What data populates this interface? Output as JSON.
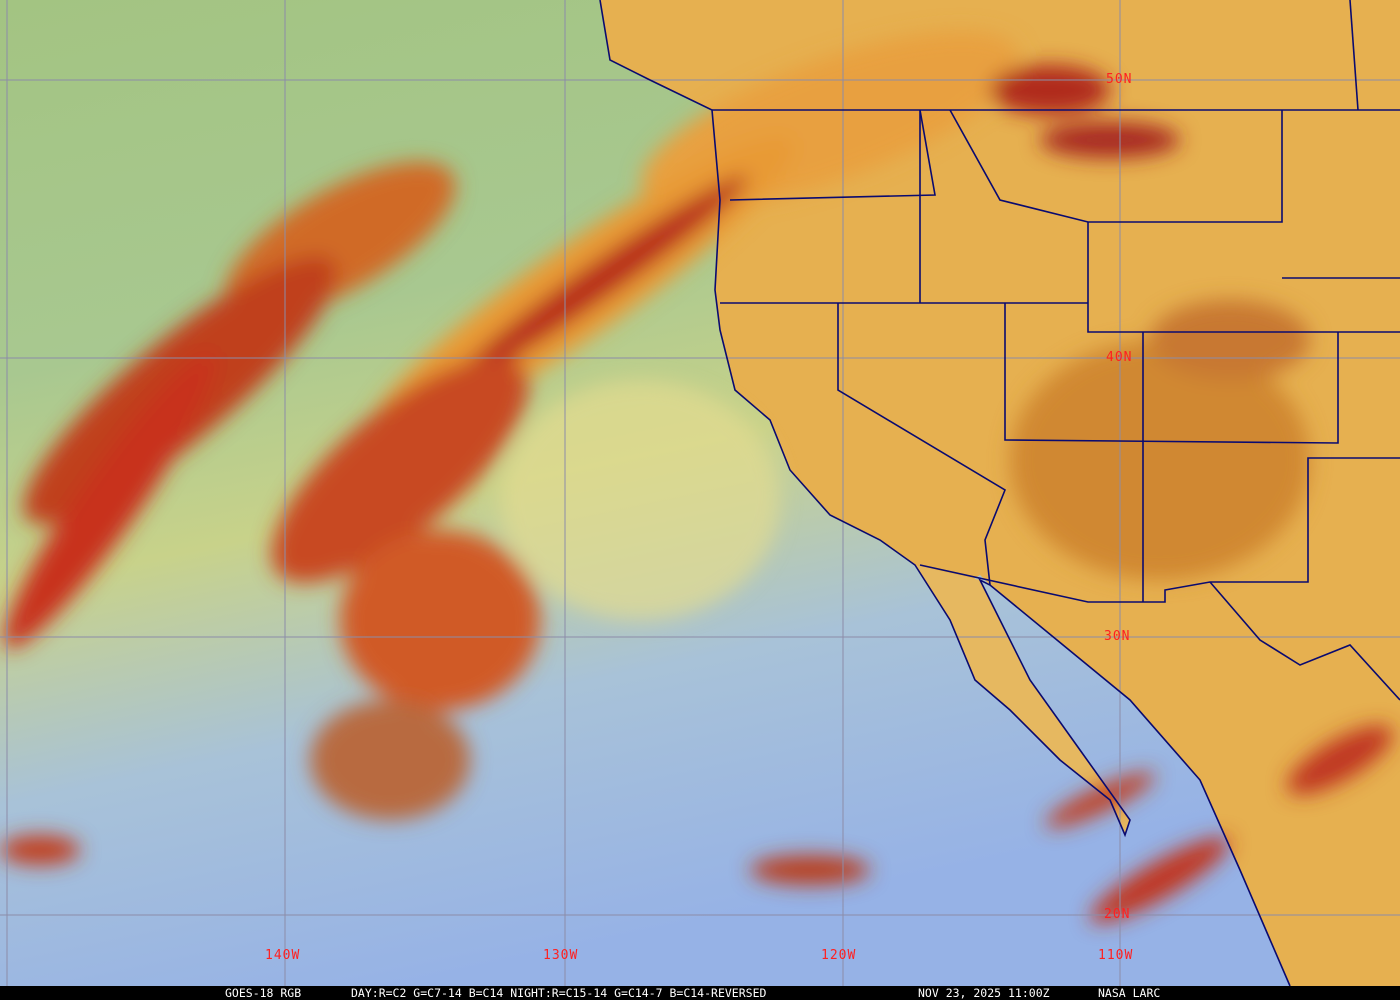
{
  "map": {
    "latitude_labels": [
      "50N",
      "40N",
      "30N",
      "20N"
    ],
    "longitude_labels": [
      "140W",
      "130W",
      "120W",
      "110W"
    ],
    "colors": {
      "land": "#e8b24e",
      "ocean_north": "#a3c482",
      "ocean_south": "#9cb8e6",
      "cloud_high": "#c8341e",
      "cloud_mid": "#f0a030",
      "grid": "#8c8ca8",
      "borders": "#0a0a70",
      "labels": "#ff2020"
    }
  },
  "footer": {
    "product": "GOES-18 RGB",
    "recipe": "DAY:R=C2 G=C7-14 B=C14 NIGHT:R=C15-14 G=C14-7 B=C14-REVERSED",
    "timestamp": "NOV 23, 2025 11:00Z",
    "credit": "NASA LARC"
  }
}
